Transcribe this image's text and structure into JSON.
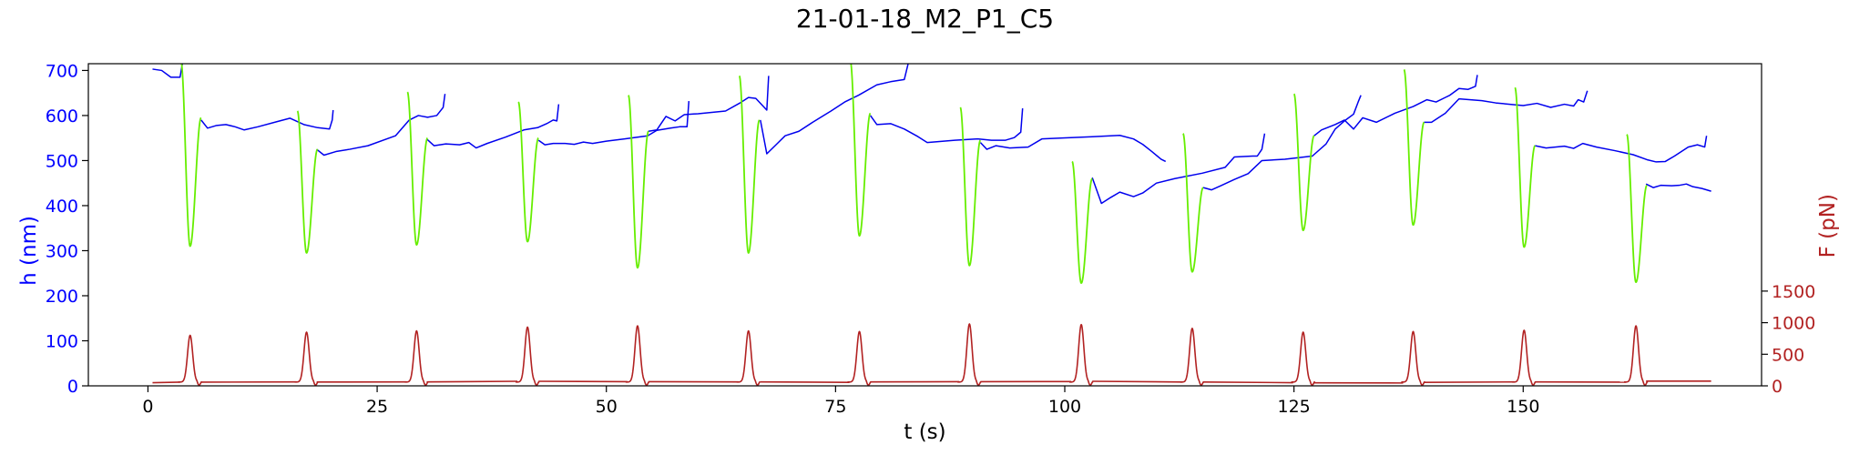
{
  "chart_data": {
    "type": "line",
    "title": "21-01-18_M2_P1_C5",
    "xlabel": "t (s)",
    "ylabel_left": "h (nm)",
    "ylabel_right": "F (pN)",
    "xlim": [
      -6.5,
      176
    ],
    "ylim_left": [
      0,
      715
    ],
    "ylim_right": [
      0,
      5100
    ],
    "x_ticks": [
      0,
      25,
      50,
      75,
      100,
      125,
      150
    ],
    "y_left_ticks": [
      0,
      100,
      200,
      300,
      400,
      500,
      600,
      700
    ],
    "y_right_ticks": [
      0,
      500,
      1000,
      1500
    ],
    "colors": {
      "h_baseline": "#0000ee",
      "h_indentation": "#66ee00",
      "force": "#b22222",
      "left_axis": "#0000ff",
      "right_axis": "#b22222",
      "text": "#000000"
    },
    "cycles": [
      {
        "t": 4.6,
        "h_min": 310,
        "h_start": 720,
        "h_end": 595,
        "f_peak": 800
      },
      {
        "t": 17.3,
        "h_min": 295,
        "h_start": 610,
        "h_end": 525,
        "f_peak": 850
      },
      {
        "t": 29.3,
        "h_min": 313,
        "h_start": 652,
        "h_end": 550,
        "f_peak": 870
      },
      {
        "t": 41.4,
        "h_min": 320,
        "h_start": 630,
        "h_end": 550,
        "f_peak": 930
      },
      {
        "t": 53.4,
        "h_min": 262,
        "h_start": 645,
        "h_end": 565,
        "f_peak": 950
      },
      {
        "t": 65.5,
        "h_min": 295,
        "h_start": 688,
        "h_end": 590,
        "f_peak": 870
      },
      {
        "t": 77.6,
        "h_min": 333,
        "h_start": 722,
        "h_end": 605,
        "f_peak": 860
      },
      {
        "t": 89.6,
        "h_min": 267,
        "h_start": 618,
        "h_end": 545,
        "f_peak": 980
      },
      {
        "t": 101.8,
        "h_min": 228,
        "h_start": 498,
        "h_end": 460,
        "f_peak": 970
      },
      {
        "t": 113.9,
        "h_min": 253,
        "h_start": 560,
        "h_end": 440,
        "f_peak": 910
      },
      {
        "t": 126.0,
        "h_min": 345,
        "h_start": 648,
        "h_end": 555,
        "f_peak": 850
      },
      {
        "t": 138.0,
        "h_min": 357,
        "h_start": 702,
        "h_end": 585,
        "f_peak": 860
      },
      {
        "t": 150.1,
        "h_min": 308,
        "h_start": 662,
        "h_end": 533,
        "f_peak": 880
      },
      {
        "t": 162.3,
        "h_min": 230,
        "h_start": 558,
        "h_end": 445,
        "f_peak": 950
      }
    ],
    "h_baseline": [
      [
        [
          0.5,
          703
        ],
        [
          1.5,
          700
        ],
        [
          2.5,
          685
        ],
        [
          3.5,
          685
        ],
        [
          3.8,
          720
        ]
      ],
      [
        [
          5.8,
          590
        ],
        [
          6.5,
          572
        ],
        [
          7.5,
          578
        ],
        [
          8.5,
          580
        ],
        [
          9.5,
          575
        ],
        [
          10.5,
          568
        ],
        [
          12,
          575
        ],
        [
          14,
          586
        ],
        [
          15.5,
          594
        ],
        [
          17,
          580
        ],
        [
          18.5,
          573
        ],
        [
          19.8,
          570
        ],
        [
          20.1,
          590
        ],
        [
          20.2,
          612
        ]
      ],
      [
        [
          18.4,
          525
        ],
        [
          19.2,
          512
        ],
        [
          20.5,
          520
        ],
        [
          22,
          525
        ],
        [
          24,
          533
        ],
        [
          27,
          555
        ],
        [
          28.5,
          590
        ],
        [
          29.5,
          600
        ],
        [
          30.5,
          596
        ],
        [
          31.5,
          600
        ],
        [
          32.2,
          618
        ],
        [
          32.4,
          648
        ]
      ],
      [
        [
          30.4,
          548
        ],
        [
          31.2,
          533
        ],
        [
          32.5,
          537
        ],
        [
          34,
          535
        ],
        [
          35,
          540
        ],
        [
          35.8,
          528
        ],
        [
          37,
          538
        ],
        [
          39,
          552
        ],
        [
          41,
          568
        ],
        [
          42.5,
          573
        ],
        [
          43.5,
          582
        ],
        [
          44.2,
          590
        ],
        [
          44.6,
          588
        ],
        [
          44.8,
          625
        ]
      ],
      [
        [
          42.6,
          545
        ],
        [
          43.3,
          535
        ],
        [
          44.2,
          538
        ],
        [
          45.5,
          538
        ],
        [
          46.5,
          536
        ],
        [
          47.5,
          541
        ],
        [
          48.5,
          538
        ],
        [
          50,
          543
        ],
        [
          52,
          548
        ],
        [
          54.5,
          555
        ],
        [
          55.5,
          567
        ],
        [
          57,
          572
        ],
        [
          58,
          575
        ],
        [
          58.8,
          575
        ],
        [
          59,
          632
        ]
      ],
      [
        [
          54.6,
          565
        ],
        [
          55.5,
          568
        ],
        [
          56.5,
          598
        ],
        [
          57.5,
          588
        ],
        [
          58.5,
          602
        ],
        [
          60,
          604
        ],
        [
          63,
          610
        ],
        [
          64.5,
          627
        ],
        [
          65.5,
          640
        ],
        [
          66.3,
          638
        ],
        [
          67.5,
          612
        ],
        [
          67.7,
          688
        ]
      ],
      [
        [
          66.8,
          590
        ],
        [
          67.5,
          515
        ],
        [
          68.5,
          535
        ],
        [
          69.5,
          555
        ],
        [
          71,
          565
        ],
        [
          72.5,
          585
        ],
        [
          74.5,
          610
        ],
        [
          76,
          630
        ],
        [
          77.5,
          645
        ],
        [
          79.5,
          668
        ],
        [
          81,
          675
        ],
        [
          82.5,
          680
        ],
        [
          83,
          722
        ]
      ],
      [
        [
          78.8,
          600
        ],
        [
          79.5,
          580
        ],
        [
          81,
          582
        ],
        [
          82.5,
          570
        ],
        [
          84,
          553
        ],
        [
          85,
          540
        ],
        [
          88,
          545
        ],
        [
          90.5,
          548
        ],
        [
          92,
          545
        ],
        [
          93.5,
          545
        ],
        [
          94.5,
          551
        ],
        [
          95.2,
          563
        ],
        [
          95.4,
          616
        ]
      ],
      [
        [
          90.8,
          540
        ],
        [
          91.5,
          525
        ],
        [
          92.5,
          533
        ],
        [
          94,
          528
        ],
        [
          96,
          530
        ],
        [
          97.5,
          548
        ],
        [
          99.5,
          550
        ],
        [
          103,
          553
        ],
        [
          106,
          556
        ],
        [
          107.5,
          548
        ],
        [
          108.5,
          536
        ],
        [
          109.5,
          520
        ],
        [
          110.5,
          503
        ],
        [
          111,
          498
        ]
      ],
      [
        [
          103,
          462
        ],
        [
          104,
          405
        ],
        [
          105,
          418
        ],
        [
          106,
          430
        ],
        [
          107.5,
          420
        ],
        [
          108.5,
          428
        ],
        [
          110,
          450
        ],
        [
          112,
          460
        ],
        [
          115,
          472
        ],
        [
          117.5,
          485
        ],
        [
          118.5,
          508
        ],
        [
          120.5,
          510
        ],
        [
          121,
          510
        ],
        [
          121.5,
          525
        ],
        [
          121.8,
          560
        ]
      ],
      [
        [
          115.1,
          440
        ],
        [
          116,
          435
        ],
        [
          117,
          444
        ],
        [
          118.5,
          458
        ],
        [
          120,
          471
        ],
        [
          121.5,
          500
        ],
        [
          124,
          503
        ],
        [
          127,
          510
        ],
        [
          128.5,
          537
        ],
        [
          129.5,
          570
        ],
        [
          130.5,
          588
        ],
        [
          131.5,
          603
        ],
        [
          132,
          630
        ],
        [
          132.3,
          645
        ]
      ],
      [
        [
          127.2,
          555
        ],
        [
          128,
          568
        ],
        [
          129.5,
          580
        ],
        [
          130.5,
          590
        ],
        [
          131.5,
          570
        ],
        [
          132.5,
          595
        ],
        [
          134,
          585
        ],
        [
          136,
          605
        ],
        [
          138,
          620
        ],
        [
          139.5,
          635
        ],
        [
          140.5,
          630
        ],
        [
          141.5,
          640
        ],
        [
          142,
          645
        ],
        [
          143,
          660
        ],
        [
          144,
          658
        ],
        [
          144.8,
          665
        ],
        [
          145,
          690
        ]
      ],
      [
        [
          139.2,
          585
        ],
        [
          140,
          585
        ],
        [
          141.5,
          605
        ],
        [
          143,
          637
        ],
        [
          145.5,
          633
        ],
        [
          147,
          628
        ],
        [
          150,
          622
        ],
        [
          151.5,
          627
        ],
        [
          153,
          618
        ],
        [
          154.5,
          625
        ],
        [
          155.5,
          621
        ],
        [
          156,
          635
        ],
        [
          156.6,
          630
        ],
        [
          157,
          655
        ]
      ],
      [
        [
          151.3,
          533
        ],
        [
          152.5,
          528
        ],
        [
          154.5,
          532
        ],
        [
          155.5,
          527
        ],
        [
          156.5,
          538
        ],
        [
          158,
          530
        ],
        [
          160,
          522
        ],
        [
          162,
          513
        ],
        [
          163.5,
          502
        ],
        [
          164.5,
          497
        ],
        [
          165.5,
          498
        ],
        [
          166.5,
          510
        ],
        [
          168,
          530
        ],
        [
          169,
          535
        ],
        [
          169.8,
          530
        ],
        [
          170,
          555
        ]
      ],
      [
        [
          163.4,
          448
        ],
        [
          164.2,
          440
        ],
        [
          165,
          445
        ],
        [
          166.2,
          444
        ],
        [
          167,
          445
        ],
        [
          167.8,
          448
        ],
        [
          168.5,
          442
        ],
        [
          169.5,
          438
        ],
        [
          170.5,
          432
        ]
      ]
    ],
    "force_baseline": [
      [
        [
          0.5,
          50
        ],
        [
          3.5,
          58
        ]
      ],
      [
        [
          5.8,
          58
        ],
        [
          16.2,
          62
        ]
      ],
      [
        [
          18.4,
          60
        ],
        [
          28.2,
          62
        ]
      ],
      [
        [
          30.4,
          62
        ],
        [
          40.3,
          72
        ]
      ],
      [
        [
          42.6,
          72
        ],
        [
          52.3,
          66
        ]
      ],
      [
        [
          54.6,
          66
        ],
        [
          64.4,
          62
        ]
      ],
      [
        [
          66.8,
          62
        ],
        [
          76.5,
          55
        ]
      ],
      [
        [
          78.8,
          62
        ],
        [
          88.5,
          66
        ]
      ],
      [
        [
          90.8,
          66
        ],
        [
          100.7,
          68
        ]
      ],
      [
        [
          103,
          72
        ],
        [
          112.8,
          60
        ]
      ],
      [
        [
          115.1,
          60
        ],
        [
          124.9,
          50
        ]
      ],
      [
        [
          127.2,
          48
        ],
        [
          136.9,
          45
        ]
      ],
      [
        [
          139.2,
          55
        ],
        [
          149,
          62
        ]
      ],
      [
        [
          151.3,
          62
        ],
        [
          161.2,
          58
        ]
      ],
      [
        [
          163.4,
          75
        ],
        [
          170.5,
          75
        ]
      ]
    ]
  }
}
